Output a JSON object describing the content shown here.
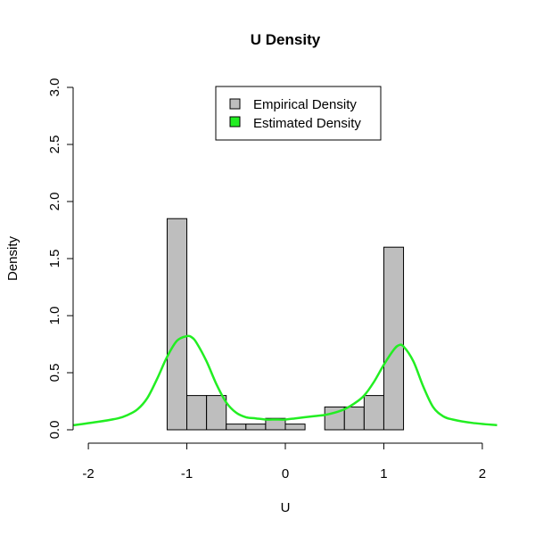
{
  "chart_data": {
    "type": "bar",
    "title": "U Density",
    "xlabel": "U",
    "ylabel": "Density",
    "xlim": [
      -2.2,
      2.2
    ],
    "ylim": [
      0,
      3.0
    ],
    "x_ticks": [
      -2,
      -1,
      0,
      1,
      2
    ],
    "x_tick_labels": [
      "-2",
      "-1",
      "0",
      "1",
      "2"
    ],
    "y_ticks": [
      0,
      0.5,
      1.0,
      1.5,
      2.0,
      2.5,
      3.0
    ],
    "y_tick_labels": [
      "0.0",
      "0.5",
      "1.0",
      "1.5",
      "2.0",
      "2.5",
      "3.0"
    ],
    "grid": false,
    "legend_position": "top-center",
    "series": [
      {
        "name": "Empirical Density",
        "kind": "histogram",
        "fill": "#bebebe",
        "bins": [
          {
            "x0": -1.2,
            "x1": -1.0,
            "density": 1.85
          },
          {
            "x0": -1.0,
            "x1": -0.8,
            "density": 0.3
          },
          {
            "x0": -0.8,
            "x1": -0.6,
            "density": 0.3
          },
          {
            "x0": -0.6,
            "x1": -0.4,
            "density": 0.05
          },
          {
            "x0": -0.4,
            "x1": -0.2,
            "density": 0.05
          },
          {
            "x0": -0.2,
            "x1": 0.0,
            "density": 0.1
          },
          {
            "x0": 0.0,
            "x1": 0.2,
            "density": 0.05
          },
          {
            "x0": 0.2,
            "x1": 0.4,
            "density": 0.0
          },
          {
            "x0": 0.4,
            "x1": 0.6,
            "density": 0.2
          },
          {
            "x0": 0.6,
            "x1": 0.8,
            "density": 0.2
          },
          {
            "x0": 0.8,
            "x1": 1.0,
            "density": 0.3
          },
          {
            "x0": 1.0,
            "x1": 1.2,
            "density": 1.6
          }
        ]
      },
      {
        "name": "Estimated Density",
        "kind": "line",
        "color": "#22ee22",
        "x": [
          -2.15,
          -1.9,
          -1.7,
          -1.6,
          -1.5,
          -1.4,
          -1.3,
          -1.2,
          -1.1,
          -1.0,
          -0.95,
          -0.9,
          -0.8,
          -0.7,
          -0.6,
          -0.5,
          -0.4,
          -0.3,
          -0.2,
          -0.1,
          0.0,
          0.1,
          0.2,
          0.3,
          0.4,
          0.5,
          0.6,
          0.7,
          0.8,
          0.9,
          1.0,
          1.1,
          1.15,
          1.2,
          1.3,
          1.4,
          1.5,
          1.6,
          1.7,
          1.9,
          2.15
        ],
        "y": [
          0.04,
          0.07,
          0.1,
          0.13,
          0.18,
          0.28,
          0.45,
          0.64,
          0.78,
          0.82,
          0.81,
          0.76,
          0.6,
          0.4,
          0.24,
          0.15,
          0.11,
          0.1,
          0.09,
          0.09,
          0.09,
          0.1,
          0.11,
          0.12,
          0.13,
          0.15,
          0.18,
          0.23,
          0.3,
          0.42,
          0.57,
          0.7,
          0.74,
          0.73,
          0.6,
          0.38,
          0.2,
          0.12,
          0.09,
          0.06,
          0.04
        ]
      }
    ]
  }
}
